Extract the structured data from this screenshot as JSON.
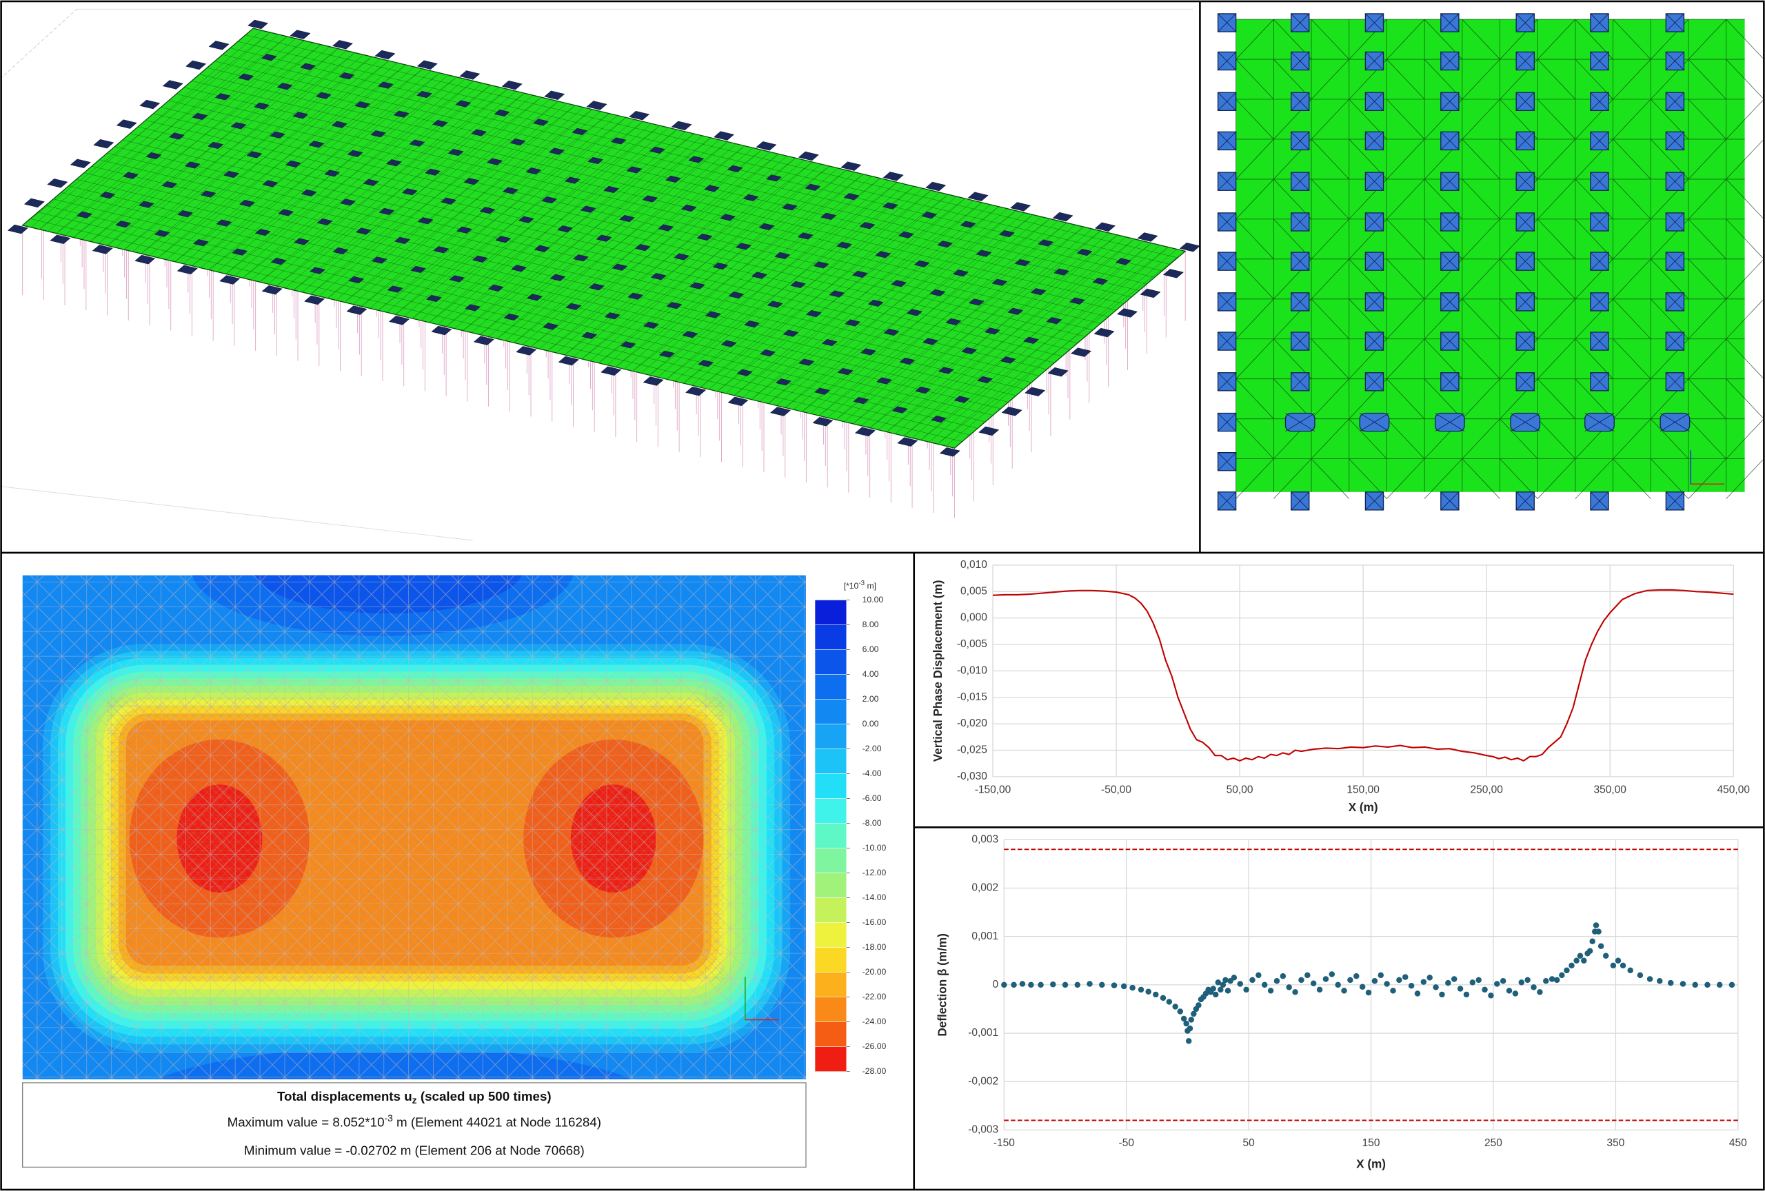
{
  "contour": {
    "legend_unit": {
      "base": "[*10",
      "exponent": "-3",
      "suffix": " m]"
    },
    "legend_ticks": [
      {
        "value": 10,
        "label": "10.00"
      },
      {
        "value": 8,
        "label": "8.00"
      },
      {
        "value": 6,
        "label": "6.00"
      },
      {
        "value": 4,
        "label": "4.00"
      },
      {
        "value": 2,
        "label": "2.00"
      },
      {
        "value": 0,
        "label": "0.00"
      },
      {
        "value": -2,
        "label": "-2.00"
      },
      {
        "value": -4,
        "label": "-4.00"
      },
      {
        "value": -6,
        "label": "-6.00"
      },
      {
        "value": -8,
        "label": "-8.00"
      },
      {
        "value": -10,
        "label": "-10.00"
      },
      {
        "value": -12,
        "label": "-12.00"
      },
      {
        "value": -14,
        "label": "-14.00"
      },
      {
        "value": -16,
        "label": "-16.00"
      },
      {
        "value": -18,
        "label": "-18.00"
      },
      {
        "value": -20,
        "label": "-20.00"
      },
      {
        "value": -22,
        "label": "-22.00"
      },
      {
        "value": -24,
        "label": "-24.00"
      },
      {
        "value": -26,
        "label": "-26.00"
      },
      {
        "value": -28,
        "label": "-28.00"
      }
    ],
    "colors": [
      "#0a1fd9",
      "#0a3ce6",
      "#0b55ea",
      "#0e6ef0",
      "#1288f2",
      "#17a4f5",
      "#1cc3f7",
      "#22dff7",
      "#3ff2ea",
      "#5ef7c6",
      "#7ff5a0",
      "#a0f27a",
      "#c5f25a",
      "#eef23c",
      "#fbd823",
      "#fbb01c",
      "#f98a18",
      "#f55d14",
      "#f01e12"
    ],
    "caption": {
      "title": {
        "text": "Total displacements u",
        "subscript": "z",
        "suffix": " (scaled up 500 times)"
      },
      "maximum": {
        "text": "Maximum value = 8.052*10",
        "exponent": "-3",
        "suffix": " m (Element 44021 at Node 116284)"
      },
      "minimum": "Minimum value = -0.02702 m (Element 206 at Node 70668)"
    }
  },
  "chart_data": [
    {
      "type": "line",
      "x_label": "X (m)",
      "y_label": "Vertical Phase Displacement (m)",
      "color": "#c00000",
      "grid": true,
      "xlim": [
        -150,
        450
      ],
      "ylim": [
        -0.03,
        0.01
      ],
      "xticks": [
        {
          "value": -150,
          "label": "-150,00"
        },
        {
          "value": -50,
          "label": "-50,00"
        },
        {
          "value": 50,
          "label": "50,00"
        },
        {
          "value": 150,
          "label": "150,00"
        },
        {
          "value": 250,
          "label": "250,00"
        },
        {
          "value": 350,
          "label": "350,00"
        },
        {
          "value": 450,
          "label": "450,00"
        }
      ],
      "yticks": [
        {
          "value": 0.01,
          "label": "0,010"
        },
        {
          "value": 0.005,
          "label": "0,005"
        },
        {
          "value": 0,
          "label": "0,000"
        },
        {
          "value": -0.005,
          "label": "-0,005"
        },
        {
          "value": -0.01,
          "label": "-0,010"
        },
        {
          "value": -0.015,
          "label": "-0,015"
        },
        {
          "value": -0.02,
          "label": "-0,020"
        },
        {
          "value": -0.025,
          "label": "-0,025"
        },
        {
          "value": -0.03,
          "label": "-0,030"
        }
      ],
      "x": [
        -150,
        -140,
        -130,
        -120,
        -110,
        -100,
        -90,
        -80,
        -70,
        -60,
        -50,
        -40,
        -35,
        -30,
        -25,
        -20,
        -15,
        -10,
        -5,
        0,
        5,
        10,
        15,
        20,
        25,
        30,
        35,
        40,
        45,
        50,
        55,
        60,
        65,
        70,
        75,
        80,
        85,
        90,
        95,
        100,
        110,
        120,
        130,
        140,
        150,
        160,
        170,
        180,
        190,
        200,
        210,
        220,
        230,
        240,
        250,
        255,
        260,
        265,
        270,
        275,
        280,
        285,
        290,
        295,
        300,
        305,
        310,
        315,
        320,
        325,
        330,
        335,
        340,
        345,
        350,
        360,
        370,
        380,
        390,
        400,
        410,
        420,
        430,
        440,
        450
      ],
      "values": [
        0.0043,
        0.0044,
        0.0044,
        0.0045,
        0.0047,
        0.0049,
        0.0051,
        0.0052,
        0.0052,
        0.0051,
        0.0049,
        0.0044,
        0.0038,
        0.0028,
        0.0013,
        -0.001,
        -0.004,
        -0.008,
        -0.011,
        -0.015,
        -0.018,
        -0.021,
        -0.023,
        -0.0235,
        -0.0245,
        -0.026,
        -0.026,
        -0.0268,
        -0.0265,
        -0.027,
        -0.0265,
        -0.0268,
        -0.0262,
        -0.0265,
        -0.0258,
        -0.026,
        -0.0255,
        -0.0258,
        -0.025,
        -0.0252,
        -0.0248,
        -0.0246,
        -0.0247,
        -0.0244,
        -0.0245,
        -0.0242,
        -0.0244,
        -0.0241,
        -0.0245,
        -0.0244,
        -0.0248,
        -0.0247,
        -0.0252,
        -0.0255,
        -0.026,
        -0.0262,
        -0.0266,
        -0.0263,
        -0.0268,
        -0.0265,
        -0.027,
        -0.0262,
        -0.0262,
        -0.0258,
        -0.0245,
        -0.0235,
        -0.0225,
        -0.02,
        -0.017,
        -0.0125,
        -0.008,
        -0.005,
        -0.0025,
        -0.0005,
        0.001,
        0.0035,
        0.0046,
        0.0052,
        0.0053,
        0.0053,
        0.0052,
        0.005,
        0.0049,
        0.0047,
        0.0045
      ]
    },
    {
      "type": "scatter",
      "x_label": "X (m)",
      "y_label": "Deflection β (m/m)",
      "color": "#1f5f7a",
      "grid": true,
      "xlim": [
        -150,
        450
      ],
      "ylim": [
        -0.003,
        0.003
      ],
      "xticks": [
        -150,
        -50,
        50,
        150,
        250,
        350,
        450
      ],
      "yticks": [
        {
          "value": 0.003,
          "label": "0,003"
        },
        {
          "value": 0.002,
          "label": "0,002"
        },
        {
          "value": 0.001,
          "label": "0,001"
        },
        0,
        {
          "value": -0.001,
          "label": "-0,001"
        },
        {
          "value": -0.002,
          "label": "-0,002"
        },
        {
          "value": -0.003,
          "label": "-0,003"
        }
      ],
      "reference_lines": [
        {
          "value": 0.0028,
          "color": "#c00000",
          "style": "dashed"
        },
        {
          "value": -0.0028,
          "color": "#c00000",
          "style": "dashed"
        }
      ],
      "x": [
        -150,
        -142,
        -135,
        -128,
        -120,
        -110,
        -100,
        -90,
        -80,
        -70,
        -60,
        -52,
        -45,
        -38,
        -32,
        -26,
        -20,
        -15,
        -10,
        -6,
        -3,
        -1,
        0,
        1,
        2,
        3,
        5,
        7,
        9,
        11,
        13,
        15,
        17,
        19,
        21,
        23,
        25,
        27,
        29,
        31,
        33,
        35,
        38,
        43,
        48,
        53,
        58,
        63,
        68,
        73,
        78,
        83,
        88,
        93,
        98,
        103,
        108,
        113,
        118,
        123,
        128,
        133,
        138,
        143,
        148,
        153,
        158,
        163,
        168,
        173,
        178,
        183,
        188,
        193,
        198,
        203,
        208,
        213,
        218,
        223,
        228,
        233,
        238,
        243,
        248,
        253,
        258,
        263,
        268,
        273,
        278,
        283,
        288,
        293,
        298,
        302,
        306,
        310,
        314,
        318,
        321,
        324,
        327,
        329,
        331,
        333,
        334,
        336,
        338,
        342,
        348,
        352,
        356,
        362,
        370,
        378,
        386,
        395,
        405,
        415,
        425,
        435,
        445
      ],
      "values": [
        0,
        0,
        2e-05,
        0,
        0,
        1e-05,
        0,
        0,
        2e-05,
        0,
        -1e-05,
        -3e-05,
        -6e-05,
        -0.0001,
        -0.00014,
        -0.0002,
        -0.00027,
        -0.00035,
        -0.00045,
        -0.00055,
        -0.0007,
        -0.0008,
        -0.00095,
        -0.00116,
        -0.0009,
        -0.00072,
        -0.0006,
        -0.0005,
        -0.00042,
        -0.0003,
        -0.00025,
        -0.00018,
        -0.0001,
        -0.00015,
        -8e-05,
        -0.0002,
        5e-05,
        -0.0001,
        0,
        0.0001,
        -0.00012,
        8e-05,
        0.00015,
        2e-05,
        -0.0001,
        0.0001,
        0.0002,
        0,
        -0.00012,
        8e-05,
        0.00018,
        -5e-05,
        -0.00015,
        0.0001,
        0.0002,
        3e-05,
        -0.0001,
        0.00012,
        0.00022,
        0,
        -0.00012,
        0.0001,
        0.00018,
        -4e-05,
        -0.00016,
        8e-05,
        0.0002,
        2e-05,
        -0.00012,
        0.0001,
        0.00016,
        -2e-05,
        -0.00018,
        6e-05,
        0.00015,
        -5e-05,
        -0.0002,
        4e-05,
        0.00012,
        -8e-05,
        -0.0002,
        5e-05,
        0.0001,
        -0.0001,
        -0.00022,
        2e-05,
        8e-05,
        -0.00012,
        -0.00018,
        5e-05,
        0.0001,
        -5e-05,
        -0.00015,
        8e-05,
        0.00012,
        0.0001,
        0.0002,
        0.0003,
        0.0004,
        0.0005,
        0.0006,
        0.0005,
        0.00065,
        0.0007,
        0.0009,
        0.0011,
        0.00123,
        0.0011,
        0.0008,
        0.0006,
        0.0004,
        0.0005,
        0.0004,
        0.0003,
        0.0002,
        0.00012,
        8e-05,
        4e-05,
        2e-05,
        0,
        0,
        0,
        0
      ]
    }
  ]
}
